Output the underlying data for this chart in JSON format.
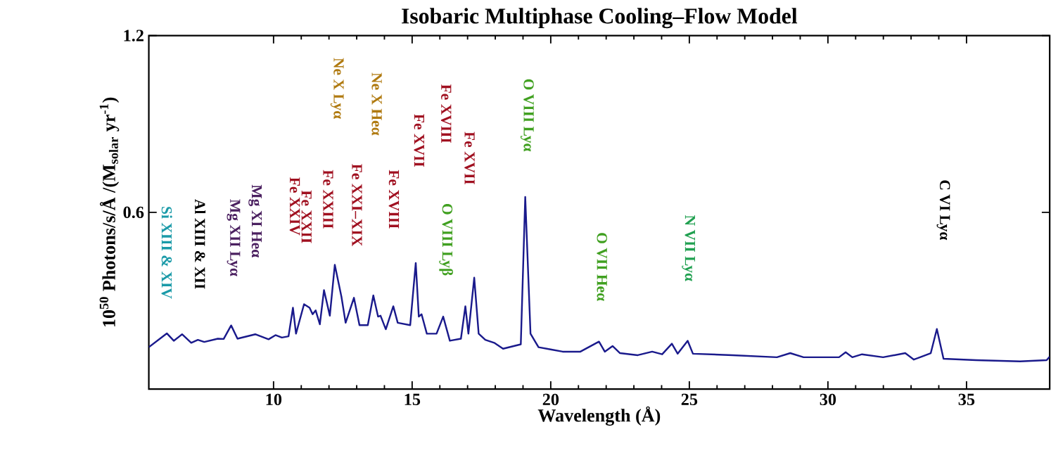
{
  "chart_data": {
    "type": "line",
    "title": "Isobaric Multiphase Cooling–Flow Model",
    "xlabel": "Wavelength (Å)",
    "ylabel": "10$^{50}$ Photons/s/Å /(M$_{solar}$ yr$^{-1}$)",
    "xlim": [
      5.5,
      38
    ],
    "ylim": [
      0,
      1.2
    ],
    "xticks": [
      10,
      15,
      20,
      25,
      30,
      35
    ],
    "yticks": [
      0.6,
      1.2
    ],
    "series": [
      {
        "color": "#1a1a8c",
        "x": [
          5.5,
          6.15,
          6.4,
          6.7,
          7.03,
          7.27,
          7.5,
          7.99,
          8.2,
          8.47,
          8.7,
          9.34,
          9.82,
          10.07,
          10.3,
          10.54,
          10.7,
          10.81,
          11.1,
          11.3,
          11.41,
          11.52,
          11.67,
          11.82,
          12.03,
          12.21,
          12.45,
          12.6,
          12.9,
          13.1,
          13.4,
          13.6,
          13.77,
          13.86,
          14.05,
          14.32,
          14.48,
          14.93,
          15.13,
          15.24,
          15.34,
          15.53,
          15.88,
          16.12,
          16.36,
          16.76,
          16.92,
          17.03,
          17.24,
          17.4,
          17.64,
          17.96,
          18.28,
          18.92,
          19.08,
          19.27,
          19.56,
          20.03,
          20.43,
          21.07,
          21.74,
          21.95,
          22.23,
          22.5,
          23.14,
          23.66,
          24.02,
          24.37,
          24.58,
          24.94,
          25.13,
          26.57,
          28.16,
          28.64,
          29.12,
          30.4,
          30.64,
          30.88,
          31.23,
          31.99,
          32.79,
          33.1,
          33.71,
          33.93,
          34.17,
          35.34,
          36.93,
          37.89,
          38.0
        ],
        "values": [
          0.142,
          0.189,
          0.164,
          0.186,
          0.157,
          0.167,
          0.16,
          0.171,
          0.17,
          0.216,
          0.171,
          0.186,
          0.169,
          0.183,
          0.175,
          0.179,
          0.276,
          0.188,
          0.288,
          0.276,
          0.254,
          0.267,
          0.22,
          0.336,
          0.249,
          0.422,
          0.313,
          0.225,
          0.31,
          0.217,
          0.217,
          0.318,
          0.246,
          0.249,
          0.203,
          0.281,
          0.225,
          0.217,
          0.428,
          0.246,
          0.254,
          0.188,
          0.188,
          0.246,
          0.164,
          0.171,
          0.281,
          0.188,
          0.378,
          0.188,
          0.167,
          0.157,
          0.137,
          0.152,
          0.652,
          0.188,
          0.142,
          0.134,
          0.127,
          0.127,
          0.161,
          0.127,
          0.146,
          0.122,
          0.115,
          0.127,
          0.118,
          0.154,
          0.12,
          0.164,
          0.12,
          0.115,
          0.108,
          0.122,
          0.108,
          0.108,
          0.125,
          0.108,
          0.118,
          0.108,
          0.122,
          0.1,
          0.122,
          0.204,
          0.103,
          0.098,
          0.094,
          0.098,
          0.11
        ]
      }
    ],
    "annotations": [
      "Si XIII & XIV",
      "Al XIII & XII",
      "Mg XII Lyα",
      "Mg XI Heα",
      "Fe XXIV",
      "Fe XXII",
      "Fe XXIII",
      "Ne X Lyα",
      "Fe XXI–XIX",
      "Ne X Heα",
      "Fe XVIII",
      "Fe XVII",
      "Fe XVIII",
      "O VIII Lyβ",
      "Fe XVII",
      "O VIII Lyα",
      "O VII Heα",
      "N VII Lyα",
      "C VI Lyα"
    ]
  }
}
